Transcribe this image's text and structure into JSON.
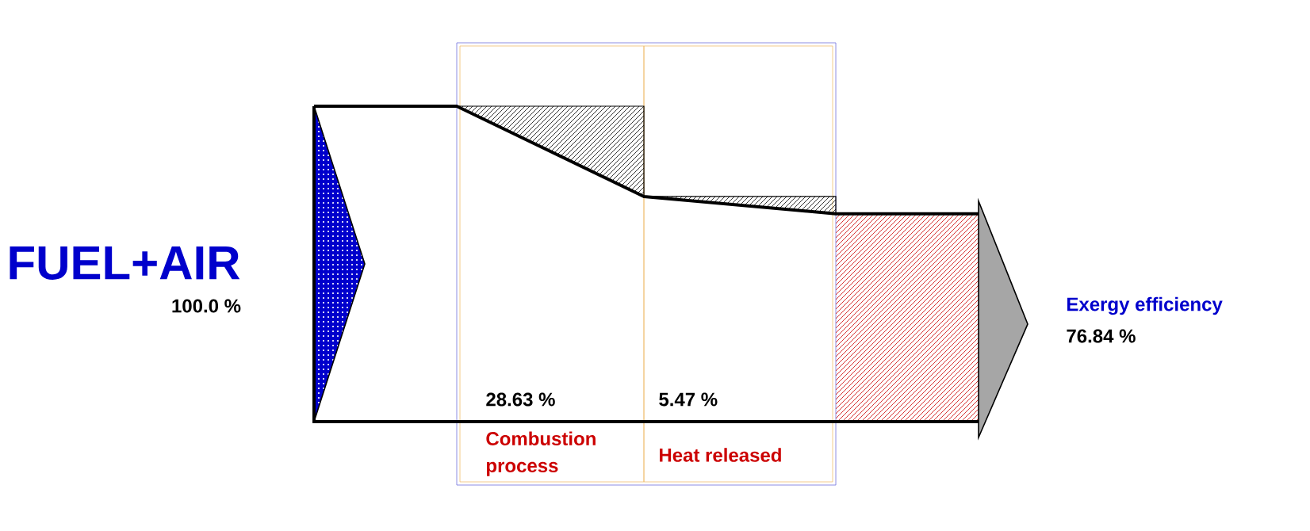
{
  "chart_data": {
    "type": "other",
    "categories": [
      "FUEL+AIR",
      "Combustion process",
      "Heat released",
      "Exergy efficiency"
    ],
    "values": [
      100.0,
      28.63,
      5.47,
      76.84
    ],
    "value_labels": [
      "100.0 %",
      "28.63 %",
      "5.47 %",
      "76.84 %"
    ],
    "colors": [
      "#0000cc",
      "#000000",
      "#000000",
      "#cc0000"
    ]
  }
}
